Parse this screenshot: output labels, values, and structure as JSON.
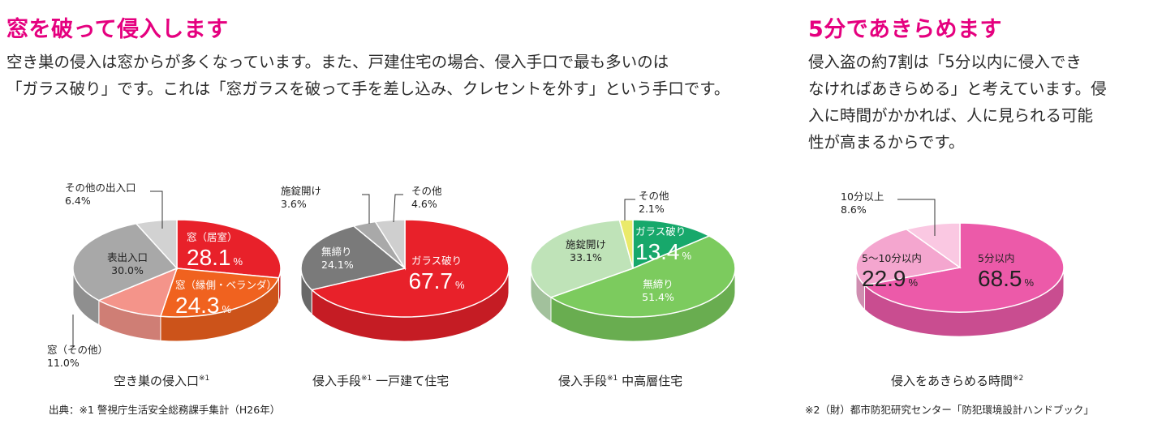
{
  "left": {
    "heading": "窓を破って侵入します",
    "paragraph_lines": [
      "空き巣の侵入は窓からが多くなっています。また、戸建住宅の場合、侵入手口で最も多いのは",
      "「ガラス破り」です。これは「窓ガラスを破って手を差し込み、クレセントを外す」という手口です。"
    ],
    "source": "出典：※1 警視庁生活安全総務課手集計（H26年）"
  },
  "right": {
    "heading": "5分であきらめます",
    "paragraph_lines": [
      "侵入盗の約7割は「5分以内に侵入でき",
      "なければあきらめる」と考えています。侵",
      "入に時間がかかれば、人に見られる可能",
      "性が高まるからです。"
    ],
    "source": "※2（財）都市防犯研究センター「防犯環境設計ハンドブック」"
  },
  "chart_data": [
    {
      "type": "pie",
      "caption": "空き巣の侵入口",
      "caption_note": "※1",
      "slices": [
        {
          "label": "窓（居室）",
          "value": 28.1,
          "color": "#e8212a"
        },
        {
          "label": "窓（縁側・ベランダ）",
          "value": 24.3,
          "color": "#f0621f"
        },
        {
          "label": "窓（その他）",
          "value": 11.0,
          "color": "#f4948a"
        },
        {
          "label": "表出入口",
          "value": 30.0,
          "color": "#a8a8a8"
        },
        {
          "label": "その他の出入口",
          "value": 6.4,
          "color": "#d2d2d2"
        }
      ]
    },
    {
      "type": "pie",
      "caption": "侵入手段",
      "caption_note": "※1",
      "caption_suffix": "一戸建て住宅",
      "slices": [
        {
          "label": "ガラス破り",
          "value": 67.7,
          "color": "#e8212a"
        },
        {
          "label": "無締り",
          "value": 24.1,
          "color": "#7a7a7a"
        },
        {
          "label": "施錠開け",
          "value": 3.6,
          "color": "#a9a9a9"
        },
        {
          "label": "その他",
          "value": 4.6,
          "color": "#cfcfcf"
        }
      ]
    },
    {
      "type": "pie",
      "caption": "侵入手段",
      "caption_note": "※1",
      "caption_suffix": "中高層住宅",
      "slices": [
        {
          "label": "ガラス破り",
          "value": 13.4,
          "color": "#17a86b"
        },
        {
          "label": "無締り",
          "value": 51.4,
          "color": "#7ccb5e"
        },
        {
          "label": "施錠開け",
          "value": 33.1,
          "color": "#bfe3b8"
        },
        {
          "label": "その他",
          "value": 2.1,
          "color": "#eaea6a"
        }
      ]
    },
    {
      "type": "pie",
      "caption": "侵入をあきらめる時間",
      "caption_note": "※2",
      "slices": [
        {
          "label": "5分以内",
          "value": 68.5,
          "color": "#ec5aa9"
        },
        {
          "label": "5～10分以内",
          "value": 22.9,
          "color": "#f4a6cf"
        },
        {
          "label": "10分以上",
          "value": 8.6,
          "color": "#fac8e2"
        }
      ]
    }
  ]
}
